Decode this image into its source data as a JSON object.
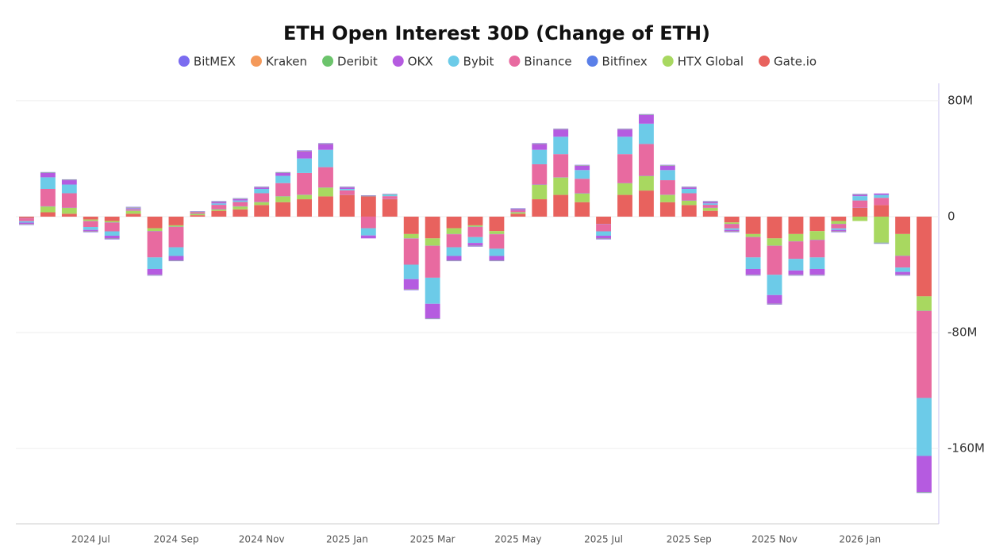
{
  "chart_data": {
    "type": "stacked-bar",
    "title": "ETH Open Interest 30D (Change of ETH)",
    "categories": [
      null,
      null,
      null,
      "2024 Jul",
      null,
      null,
      null,
      "2024 Sep",
      null,
      null,
      null,
      "2024 Nov",
      null,
      null,
      null,
      "2025 Jan",
      null,
      null,
      null,
      "2025 Mar",
      null,
      null,
      null,
      "2025 May",
      null,
      null,
      null,
      "2025 Jul",
      null,
      null,
      null,
      "2025 Sep",
      null,
      null,
      null,
      "2025 Nov",
      null,
      null,
      null,
      "2026 Jan",
      null,
      null,
      null
    ],
    "ylim": [
      -212000000,
      92000000
    ],
    "yticks": [
      {
        "value": -160000000,
        "label": "-160M"
      },
      {
        "value": -80000000,
        "label": "-80M"
      },
      0,
      {
        "value": 80000000,
        "label": "80M"
      }
    ],
    "grid": true,
    "series": [
      {
        "name": "BitMEX",
        "color": "#7b6cf0",
        "values": [
          -300000,
          300000,
          300000,
          -300000,
          -300000,
          300000,
          -300000,
          -300000,
          300000,
          300000,
          300000,
          300000,
          300000,
          300000,
          300000,
          300000,
          300000,
          300000,
          -300000,
          -300000,
          -300000,
          -300000,
          -300000,
          300000,
          300000,
          300000,
          300000,
          -300000,
          300000,
          300000,
          300000,
          300000,
          300000,
          -300000,
          -300000,
          -300000,
          -300000,
          -300000,
          -300000,
          300000,
          -300000,
          -300000,
          -300000
        ]
      },
      {
        "name": "Kraken",
        "color": "#f4995a",
        "values": [
          -100000,
          100000,
          100000,
          -100000,
          -100000,
          100000,
          -100000,
          -100000,
          100000,
          100000,
          100000,
          100000,
          100000,
          100000,
          100000,
          100000,
          100000,
          100000,
          -100000,
          -100000,
          -100000,
          -100000,
          -100000,
          100000,
          100000,
          100000,
          100000,
          -100000,
          100000,
          100000,
          100000,
          100000,
          100000,
          -100000,
          -100000,
          -100000,
          -100000,
          -100000,
          -100000,
          100000,
          -100000,
          -100000,
          -100000
        ]
      },
      {
        "name": "Deribit",
        "color": "#6cc46c",
        "values": [
          -200000,
          200000,
          200000,
          -200000,
          -200000,
          200000,
          -200000,
          -200000,
          200000,
          200000,
          200000,
          200000,
          200000,
          200000,
          200000,
          200000,
          200000,
          200000,
          -200000,
          -200000,
          -200000,
          -200000,
          -200000,
          200000,
          200000,
          200000,
          200000,
          -200000,
          200000,
          200000,
          200000,
          200000,
          200000,
          -200000,
          -200000,
          -200000,
          -200000,
          -200000,
          -200000,
          200000,
          -200000,
          -200000,
          -200000
        ]
      },
      {
        "name": "OKX",
        "color": "#b55be0",
        "values": [
          -1000000,
          3000000,
          3000000,
          -1000000,
          -2000000,
          500000,
          -4000000,
          -3000000,
          0,
          1000000,
          1000000,
          1000000,
          2000000,
          5000000,
          4000000,
          1000000,
          -2000000,
          0,
          -7000000,
          -10000000,
          -3000000,
          -2000000,
          -3000000,
          1000000,
          4000000,
          5000000,
          3000000,
          -2000000,
          5000000,
          6000000,
          3000000,
          1000000,
          1000000,
          -1000000,
          -4000000,
          -6000000,
          -3000000,
          -4000000,
          -1000000,
          1000000,
          1000000,
          -2000000,
          -25000000
        ]
      },
      {
        "name": "Bybit",
        "color": "#6ccbe8",
        "values": [
          -1000000,
          8000000,
          6000000,
          -2000000,
          -3000000,
          500000,
          -8000000,
          -6000000,
          0,
          1000000,
          1000000,
          3000000,
          5000000,
          10000000,
          12000000,
          1000000,
          -5000000,
          1000000,
          -10000000,
          -18000000,
          -6000000,
          -4000000,
          -5000000,
          0,
          10000000,
          12000000,
          6000000,
          -3000000,
          12000000,
          14000000,
          7000000,
          3000000,
          1000000,
          -1000000,
          -8000000,
          -14000000,
          -8000000,
          -8000000,
          -1000000,
          3000000,
          2000000,
          -3000000,
          -40000000
        ]
      },
      {
        "name": "Binance",
        "color": "#e86aa0",
        "values": [
          -2000000,
          12000000,
          10000000,
          -4000000,
          -6000000,
          1000000,
          -18000000,
          -14000000,
          1000000,
          3000000,
          3000000,
          6000000,
          9000000,
          15000000,
          14000000,
          3000000,
          -8000000,
          2000000,
          -18000000,
          -22000000,
          -9000000,
          -7000000,
          -10000000,
          1000000,
          14000000,
          16000000,
          10000000,
          -5000000,
          20000000,
          22000000,
          10000000,
          5000000,
          2000000,
          -3000000,
          -14000000,
          -20000000,
          -12000000,
          -12000000,
          -3000000,
          5000000,
          5000000,
          -8000000,
          -60000000
        ]
      },
      {
        "name": "Bitfinex",
        "color": "#5a7fe8",
        "values": [
          -150000,
          150000,
          150000,
          -150000,
          -150000,
          150000,
          -150000,
          -150000,
          150000,
          150000,
          150000,
          150000,
          150000,
          150000,
          150000,
          150000,
          150000,
          150000,
          -150000,
          -150000,
          -150000,
          -150000,
          -150000,
          150000,
          150000,
          150000,
          150000,
          -150000,
          150000,
          150000,
          150000,
          150000,
          150000,
          -150000,
          -150000,
          -150000,
          -150000,
          -150000,
          -150000,
          150000,
          -150000,
          -150000,
          -150000
        ]
      },
      {
        "name": "HTX Global",
        "color": "#a8d860",
        "values": [
          0,
          4000000,
          4000000,
          -1000000,
          -1000000,
          2000000,
          -2000000,
          -1000000,
          1000000,
          1000000,
          2000000,
          2000000,
          4000000,
          3000000,
          6000000,
          0,
          0,
          0,
          -3000000,
          -5000000,
          -4000000,
          -1000000,
          -2000000,
          1000000,
          10000000,
          12000000,
          6000000,
          0,
          8000000,
          10000000,
          5000000,
          3000000,
          2000000,
          -1000000,
          -2000000,
          -5000000,
          -5000000,
          -6000000,
          -2000000,
          -3000000,
          -18000000,
          -15000000,
          -10000000
        ]
      },
      {
        "name": "Gate.io",
        "color": "#e8625e",
        "values": [
          -1000000,
          3000000,
          2000000,
          -2000000,
          -3000000,
          2000000,
          -8000000,
          -6000000,
          1000000,
          4000000,
          5000000,
          8000000,
          10000000,
          12000000,
          14000000,
          15000000,
          14000000,
          12000000,
          -12000000,
          -15000000,
          -8000000,
          -6000000,
          -10000000,
          2000000,
          12000000,
          15000000,
          10000000,
          -5000000,
          15000000,
          18000000,
          10000000,
          8000000,
          4000000,
          -4000000,
          -12000000,
          -15000000,
          -12000000,
          -10000000,
          -3000000,
          6000000,
          8000000,
          -12000000,
          -55000000
        ]
      }
    ]
  }
}
